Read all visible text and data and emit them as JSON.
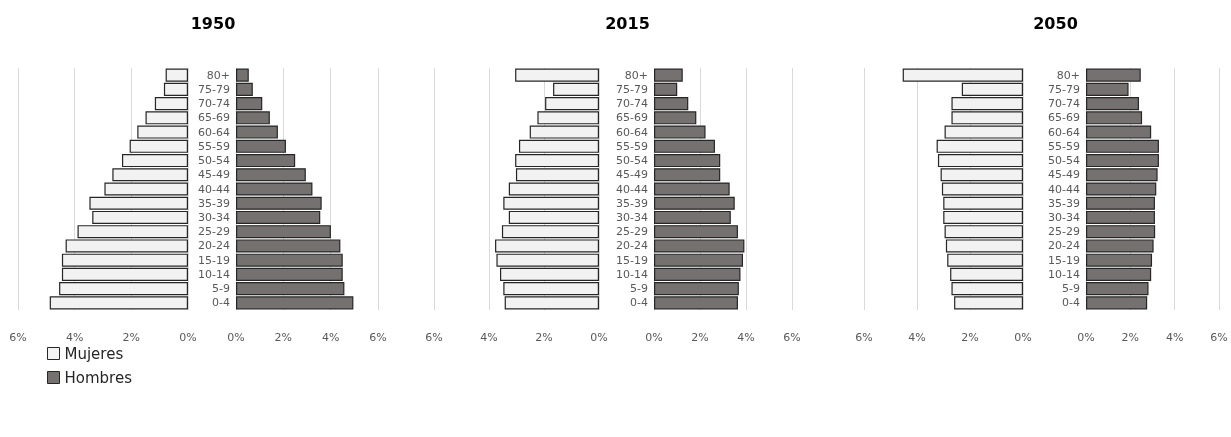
{
  "chart_data": [
    {
      "type": "bar",
      "orientation": "horizontal",
      "title": "1950",
      "categories": [
        null,
        null,
        null,
        null,
        null,
        null,
        null,
        null,
        null,
        null,
        null,
        null,
        null,
        null,
        null,
        null,
        null
      ],
      "series": [
        {
          "name": "Mujeres",
          "color": "#f2f2f2",
          "values": [
            0.79,
            0.85,
            1.17,
            1.5,
            1.79,
            2.06,
            2.33,
            2.67,
            2.95,
            3.48,
            3.38,
            3.9,
            4.32,
            4.45,
            4.45,
            4.55,
            4.88
          ]
        }
      ],
      "xlim": [
        6,
        0
      ],
      "xticks": [
        {
          "value": 6,
          "label": "6%"
        },
        {
          "value": 4,
          "label": "4%"
        },
        {
          "value": 2,
          "label": "2%"
        },
        {
          "value": 0,
          "label": "0%"
        }
      ],
      "grid": "x",
      "tick_labels": "x",
      "legend": "bottom left"
    },
    {
      "type": "bar",
      "orientation": "horizontal",
      "categories": [
        "80+",
        "75-79",
        "70-74",
        "65-69",
        "60-64",
        "55-59",
        "50-54",
        "45-49",
        "40-44",
        "35-39",
        "30-34",
        "25-29",
        "20-24",
        "15-19",
        "10-14",
        "5-9",
        "0-4"
      ],
      "series": [
        {
          "name": "Hombres",
          "color": "#767171",
          "values": [
            0.54,
            0.71,
            1.11,
            1.43,
            1.77,
            2.11,
            2.5,
            2.95,
            3.23,
            3.62,
            3.56,
            4.01,
            4.41,
            4.51,
            4.51,
            4.58,
            4.96
          ]
        }
      ],
      "xlim": [
        0,
        6
      ],
      "xticks": [
        {
          "value": 0,
          "label": "0%"
        },
        {
          "value": 2,
          "label": "2%"
        },
        {
          "value": 4,
          "label": "4%"
        },
        {
          "value": 6,
          "label": "6%"
        }
      ],
      "grid": "x",
      "legend": "bottom left"
    },
    {
      "type": "bar",
      "orientation": "horizontal",
      "title": "2015",
      "categories": [
        null,
        null,
        null,
        null,
        null,
        null,
        null,
        null,
        null,
        null,
        null,
        null,
        null,
        null,
        null,
        null,
        null
      ],
      "series": [
        {
          "color": "#f2f2f2",
          "values": [
            3.05,
            1.67,
            1.96,
            2.24,
            2.52,
            2.91,
            3.05,
            3.02,
            3.28,
            3.48,
            3.28,
            3.53,
            3.78,
            3.73,
            3.6,
            3.48,
            3.43
          ]
        }
      ],
      "xlim": [
        6,
        0
      ],
      "xticks": [
        {
          "value": 6,
          "label": "6%"
        },
        {
          "value": 4,
          "label": "4%"
        },
        {
          "value": 2,
          "label": "2%"
        },
        {
          "value": 0,
          "label": "0%"
        }
      ],
      "grid": "x",
      "tick_labels": "x"
    },
    {
      "type": "bar",
      "orientation": "horizontal",
      "categories": [
        "80+",
        "75-79",
        "70-74",
        "65-69",
        "60-64",
        "55-59",
        "50-54",
        "45-49",
        "40-44",
        "35-39",
        "30-34",
        "25-29",
        "20-24",
        "15-19",
        "10-14",
        "5-9",
        "0-4"
      ],
      "series": [
        {
          "color": "#767171",
          "values": [
            1.25,
            1.01,
            1.49,
            1.84,
            2.24,
            2.65,
            2.88,
            2.88,
            3.29,
            3.51,
            3.34,
            3.65,
            3.93,
            3.87,
            3.76,
            3.69,
            3.65
          ]
        }
      ],
      "xlim": [
        0,
        6
      ],
      "xticks": [
        {
          "value": 0,
          "label": "0%"
        },
        {
          "value": 2,
          "label": "2%"
        },
        {
          "value": 4,
          "label": "4%"
        },
        {
          "value": 6,
          "label": "6%"
        }
      ],
      "grid": "x"
    },
    {
      "type": "bar",
      "orientation": "horizontal",
      "title": "2050",
      "categories": [
        null,
        null,
        null,
        null,
        null,
        null,
        null,
        null,
        null,
        null,
        null,
        null,
        null,
        null,
        null,
        null,
        null
      ],
      "series": [
        {
          "color": "#f2f2f2",
          "values": [
            4.54,
            2.31,
            2.7,
            2.7,
            2.96,
            3.26,
            3.21,
            3.11,
            3.06,
            3.01,
            3.01,
            2.96,
            2.91,
            2.86,
            2.75,
            2.7,
            2.6
          ]
        }
      ],
      "xlim": [
        6,
        0
      ],
      "xticks": [
        {
          "value": 6,
          "label": "6%"
        },
        {
          "value": 4,
          "label": "4%"
        },
        {
          "value": 2,
          "label": "2%"
        },
        {
          "value": 0,
          "label": "0%"
        }
      ],
      "grid": "x",
      "tick_labels": "x"
    },
    {
      "type": "bar",
      "orientation": "horizontal",
      "categories": [
        "80+",
        "75-79",
        "70-74",
        "65-69",
        "60-64",
        "55-59",
        "50-54",
        "45-49",
        "40-44",
        "35-39",
        "30-34",
        "25-29",
        "20-24",
        "15-19",
        "10-14",
        "5-9",
        "0-4"
      ],
      "series": [
        {
          "color": "#767171",
          "values": [
            2.47,
            1.92,
            2.39,
            2.53,
            2.94,
            3.29,
            3.29,
            3.23,
            3.17,
            3.11,
            3.11,
            3.12,
            3.05,
            2.98,
            2.94,
            2.82,
            2.76
          ]
        }
      ],
      "xlim": [
        0,
        6
      ],
      "xticks": [
        {
          "value": 0,
          "label": "0%"
        },
        {
          "value": 2,
          "label": "2%"
        },
        {
          "value": 4,
          "label": "4%"
        },
        {
          "value": 6,
          "label": "6%"
        }
      ],
      "grid": "x"
    }
  ]
}
